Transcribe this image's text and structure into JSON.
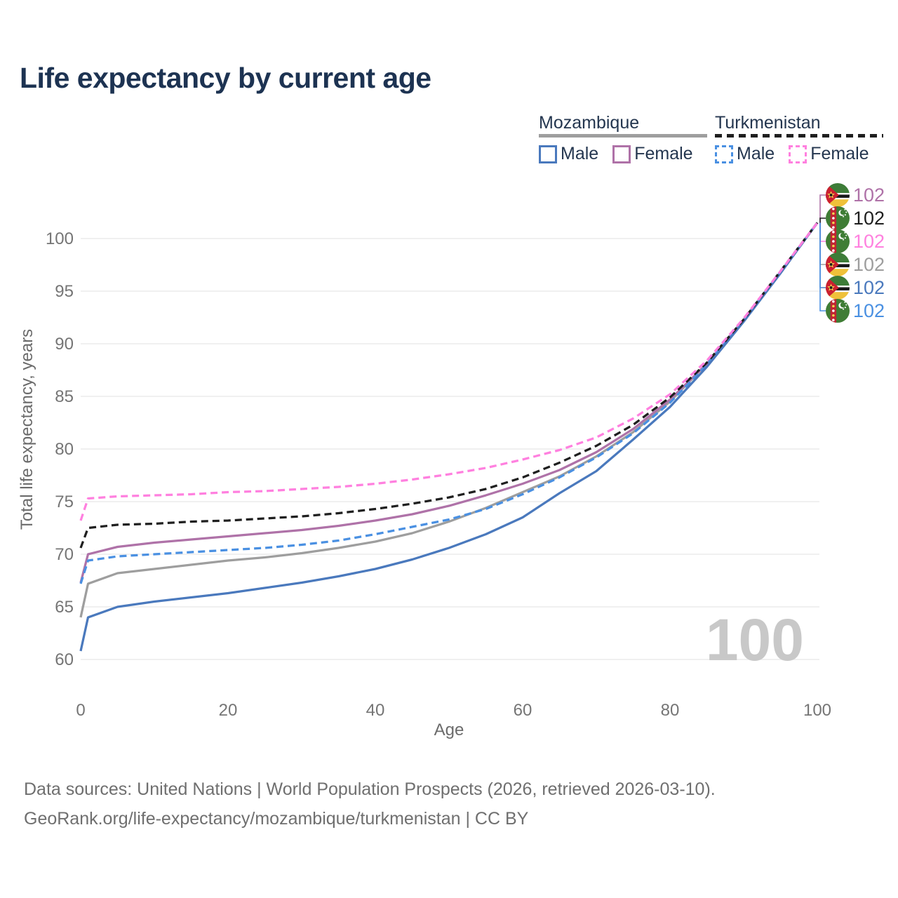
{
  "title": "Life expectancy by current age",
  "legend": {
    "countries": [
      {
        "id": "mozambique",
        "label": "Mozambique",
        "line_style": "solid",
        "line_color": "#9e9e9e",
        "items": [
          {
            "label": "Male",
            "color": "#4a79bd",
            "style": "solid"
          },
          {
            "label": "Female",
            "color": "#af72a8",
            "style": "solid"
          }
        ]
      },
      {
        "id": "turkmenistan",
        "label": "Turkmenistan",
        "line_style": "dashed",
        "line_color": "#1f1f1f",
        "items": [
          {
            "label": "Male",
            "color": "#4a90e2",
            "style": "dashed"
          },
          {
            "label": "Female",
            "color": "#ff80df",
            "style": "dashed"
          }
        ]
      }
    ]
  },
  "chart_data": {
    "type": "line",
    "title": "Life expectancy by current age",
    "xlabel": "Age",
    "ylabel": "Total life expectancy, years",
    "xlim": [
      0,
      100
    ],
    "ylim": [
      60,
      102.5
    ],
    "xticks": [
      0,
      20,
      40,
      60,
      80,
      100
    ],
    "yticks": [
      60,
      65,
      70,
      75,
      80,
      85,
      90,
      95,
      100
    ],
    "grid": "horizontal-only",
    "legend_position": "top-right",
    "current_age_watermark": "100",
    "x": [
      0,
      1,
      5,
      10,
      15,
      20,
      25,
      30,
      35,
      40,
      45,
      50,
      55,
      60,
      65,
      70,
      75,
      80,
      85,
      90,
      95,
      100
    ],
    "series": [
      {
        "id": "moz_both",
        "name": "Mozambique",
        "country": "Mozambique",
        "sex": "All",
        "color": "#9e9e9e",
        "dash": "solid",
        "values": [
          64.0,
          67.2,
          68.2,
          68.6,
          69.0,
          69.4,
          69.7,
          70.1,
          70.6,
          71.2,
          72.0,
          73.1,
          74.4,
          75.9,
          77.4,
          79.3,
          81.6,
          84.5,
          88.1,
          92.2,
          96.8,
          101.5
        ]
      },
      {
        "id": "moz_female",
        "name": "Mozambique Female",
        "country": "Mozambique",
        "sex": "Female",
        "color": "#af72a8",
        "dash": "solid",
        "values": [
          67.3,
          70.0,
          70.7,
          71.1,
          71.4,
          71.7,
          72.0,
          72.3,
          72.7,
          73.2,
          73.8,
          74.6,
          75.6,
          76.7,
          78.0,
          79.7,
          81.9,
          84.7,
          88.1,
          92.3,
          96.8,
          101.5
        ]
      },
      {
        "id": "turk_male",
        "name": "Turkmenistan Male",
        "country": "Turkmenistan",
        "sex": "Male",
        "color": "#4a90e2",
        "dash": "dashed",
        "values": [
          67.2,
          69.4,
          69.8,
          70.0,
          70.2,
          70.4,
          70.6,
          70.9,
          71.3,
          71.9,
          72.6,
          73.3,
          74.3,
          75.7,
          77.3,
          79.2,
          81.5,
          84.4,
          88.0,
          92.2,
          96.8,
          101.5
        ]
      },
      {
        "id": "moz_male",
        "name": "Mozambique Male",
        "country": "Mozambique",
        "sex": "Male",
        "color": "#4a79bd",
        "dash": "solid",
        "values": [
          60.8,
          64.0,
          65.0,
          65.5,
          65.9,
          66.3,
          66.8,
          67.3,
          67.9,
          68.6,
          69.5,
          70.6,
          71.9,
          73.5,
          75.8,
          77.9,
          80.9,
          84.0,
          87.8,
          92.1,
          96.7,
          101.5
        ]
      },
      {
        "id": "turk_both",
        "name": "Turkmenistan",
        "country": "Turkmenistan",
        "sex": "All",
        "color": "#1f1f1f",
        "dash": "dashed",
        "values": [
          70.6,
          72.5,
          72.8,
          72.9,
          73.1,
          73.2,
          73.4,
          73.6,
          73.9,
          74.3,
          74.8,
          75.4,
          76.2,
          77.3,
          78.7,
          80.3,
          82.3,
          84.9,
          88.2,
          92.3,
          96.9,
          101.5
        ]
      },
      {
        "id": "turk_female",
        "name": "Turkmenistan Female",
        "country": "Turkmenistan",
        "sex": "Female",
        "color": "#ff80df",
        "dash": "dashed",
        "values": [
          73.2,
          75.3,
          75.5,
          75.6,
          75.7,
          75.9,
          76.0,
          76.2,
          76.4,
          76.7,
          77.1,
          77.6,
          78.2,
          79.0,
          79.9,
          81.1,
          82.9,
          85.2,
          88.4,
          92.4,
          96.9,
          101.5
        ]
      }
    ],
    "end_labels": [
      {
        "flag": "mozambique",
        "series": "Mozambique Female",
        "value": "102",
        "color": "#af72a8"
      },
      {
        "flag": "turkmenistan",
        "series": "Turkmenistan",
        "value": "102",
        "color": "#1f1f1f"
      },
      {
        "flag": "turkmenistan",
        "series": "Turkmenistan Female",
        "value": "102",
        "color": "#ff80df"
      },
      {
        "flag": "mozambique",
        "series": "Mozambique",
        "value": "102",
        "color": "#9e9e9e"
      },
      {
        "flag": "mozambique",
        "series": "Mozambique Male",
        "value": "102",
        "color": "#4a79bd"
      },
      {
        "flag": "turkmenistan",
        "series": "Turkmenistan Male",
        "value": "102",
        "color": "#4a90e2"
      }
    ]
  },
  "colors": {
    "title_text": "#1d3352",
    "legend_text": "#24364f",
    "tick_text": "#757575",
    "axis_title_text": "#6b6b6b",
    "gridline": "#ececec",
    "watermark": "#c8c8c8",
    "footer_text": "#6f6f6f"
  },
  "footer": {
    "line1": "Data sources: United Nations | World Population Prospects (2026, retrieved 2026-03-10).",
    "line2": "GeoRank.org/life-expectancy/mozambique/turkmenistan | CC BY"
  }
}
